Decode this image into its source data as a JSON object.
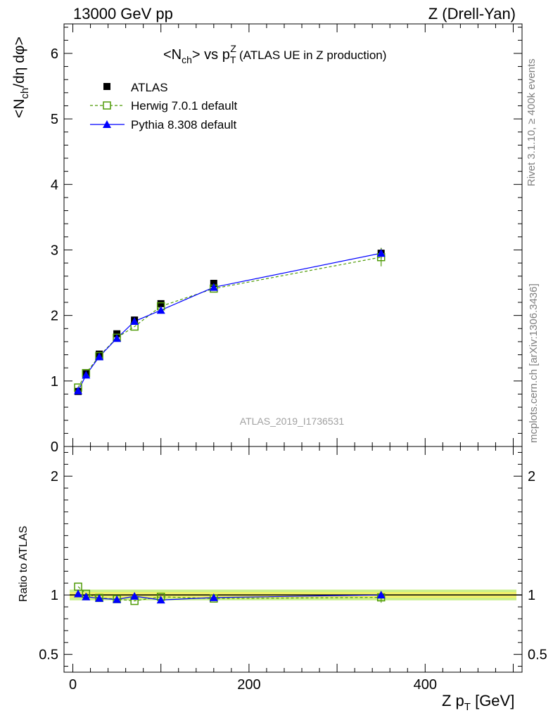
{
  "header": {
    "energy": "13000 GeV pp",
    "process": "Z (Drell-Yan)"
  },
  "side_text": {
    "rivet": "Rivet 3.1.10, ≥ 400k events",
    "mcplots": "mcplots.cern.ch [arXiv:1306.3436]"
  },
  "watermark": "ATLAS_2019_I1736531",
  "chart_data": [
    {
      "type": "scatter",
      "title": "<N_ch> vs p_T^Z (ATLAS UE in Z production)",
      "ylabel": "<N_ch/dη dφ>",
      "xlim": [
        -10,
        510
      ],
      "ylim": [
        0,
        6.45
      ],
      "yticks": [
        0,
        1,
        2,
        3,
        4,
        5,
        6
      ],
      "legend_position": "top-left",
      "x": [
        6,
        15,
        30,
        50,
        70,
        100,
        160,
        350
      ],
      "series": [
        {
          "name": "ATLAS",
          "marker": "filled-square",
          "color": "#000000",
          "values": [
            0.84,
            1.11,
            1.41,
            1.72,
            1.93,
            2.18,
            2.49,
            2.95
          ],
          "errors": [
            0.02,
            0.02,
            0.02,
            0.03,
            0.03,
            0.04,
            0.05,
            0.08
          ]
        },
        {
          "name": "Herwig 7.0.1 default",
          "marker": "open-square",
          "line": "dashed",
          "color": "#4e9a06",
          "values": [
            0.9,
            1.12,
            1.38,
            1.66,
            1.83,
            2.14,
            2.41,
            2.89
          ],
          "errors": [
            0.0,
            0.0,
            0.0,
            0.0,
            0.0,
            0.0,
            0.0,
            0.14
          ]
        },
        {
          "name": "Pythia 8.308 default",
          "marker": "filled-triangle",
          "line": "solid",
          "color": "#0000ff",
          "values": [
            0.85,
            1.09,
            1.37,
            1.65,
            1.91,
            2.08,
            2.43,
            2.95
          ],
          "errors": [
            0.0,
            0.0,
            0.0,
            0.0,
            0.0,
            0.0,
            0.0,
            0.05
          ]
        }
      ]
    },
    {
      "type": "scatter",
      "ylabel": "Ratio to ATLAS",
      "xlabel": "Z p_T [GeV]",
      "xlim": [
        -10,
        510
      ],
      "xticks": [
        0,
        200,
        400
      ],
      "ylim": [
        0.35,
        2.25
      ],
      "yticks": [
        0.5,
        1,
        2
      ],
      "reference_band": {
        "inner": [
          0.975,
          1.025
        ],
        "outer": [
          0.955,
          1.045
        ],
        "inner_color": "#f0f06a",
        "outer_color": "#c8f08c"
      },
      "x": [
        6,
        15,
        30,
        50,
        70,
        100,
        160,
        350
      ],
      "series": [
        {
          "name": "Herwig 7.0.1 default",
          "values": [
            1.07,
            1.01,
            0.975,
            0.965,
            0.95,
            0.985,
            0.97,
            0.98
          ],
          "errors": [
            0.0,
            0.0,
            0.0,
            0.0,
            0.0,
            0.0,
            0.0,
            0.045
          ]
        },
        {
          "name": "Pythia 8.308 default",
          "values": [
            1.01,
            0.985,
            0.972,
            0.962,
            0.99,
            0.958,
            0.978,
            1.0
          ],
          "errors": [
            0.0,
            0.0,
            0.0,
            0.0,
            0.0,
            0.0,
            0.0,
            0.02
          ]
        }
      ]
    }
  ]
}
